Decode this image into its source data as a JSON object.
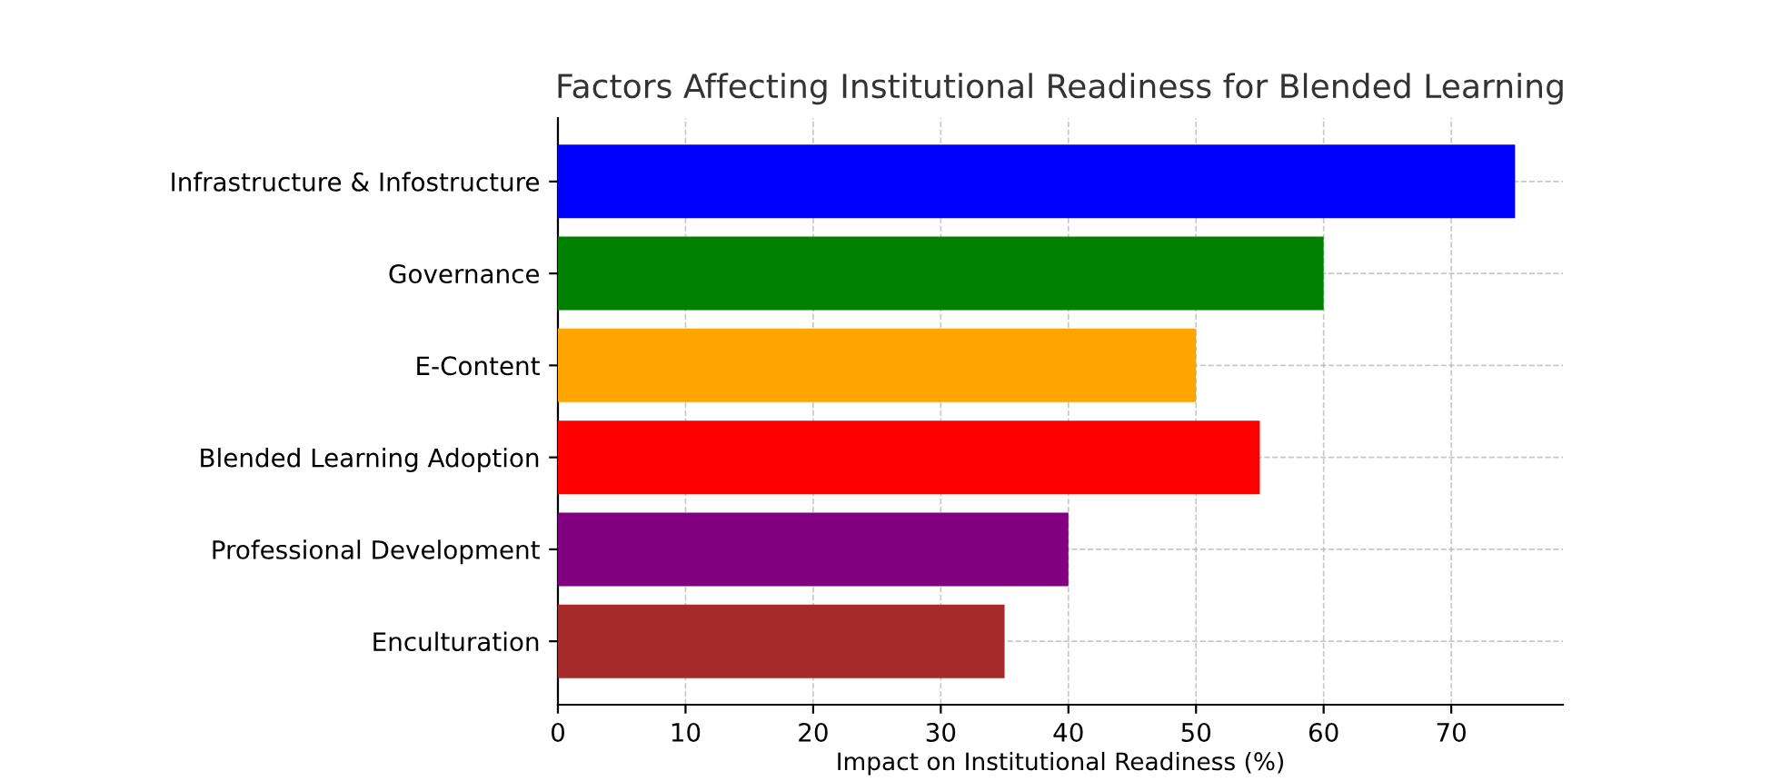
{
  "chart_data": {
    "type": "bar",
    "orientation": "horizontal",
    "title": "Factors Affecting Institutional Readiness for Blended Learning",
    "xlabel": "Impact on Institutional Readiness (%)",
    "categories": [
      "Infrastructure & Infostructure",
      "Governance",
      "E-Content",
      "Blended Learning Adoption",
      "Professional Development",
      "Enculturation"
    ],
    "values": [
      75,
      60,
      50,
      55,
      40,
      35
    ],
    "colors": [
      "#0000ff",
      "#008000",
      "#ffa500",
      "#ff0000",
      "#800080",
      "#a52a2a"
    ],
    "xlim": [
      0,
      78.75
    ],
    "xticks": [
      0,
      10,
      20,
      30,
      40,
      50,
      60,
      70
    ],
    "grid": true,
    "line_style": "dashed"
  }
}
